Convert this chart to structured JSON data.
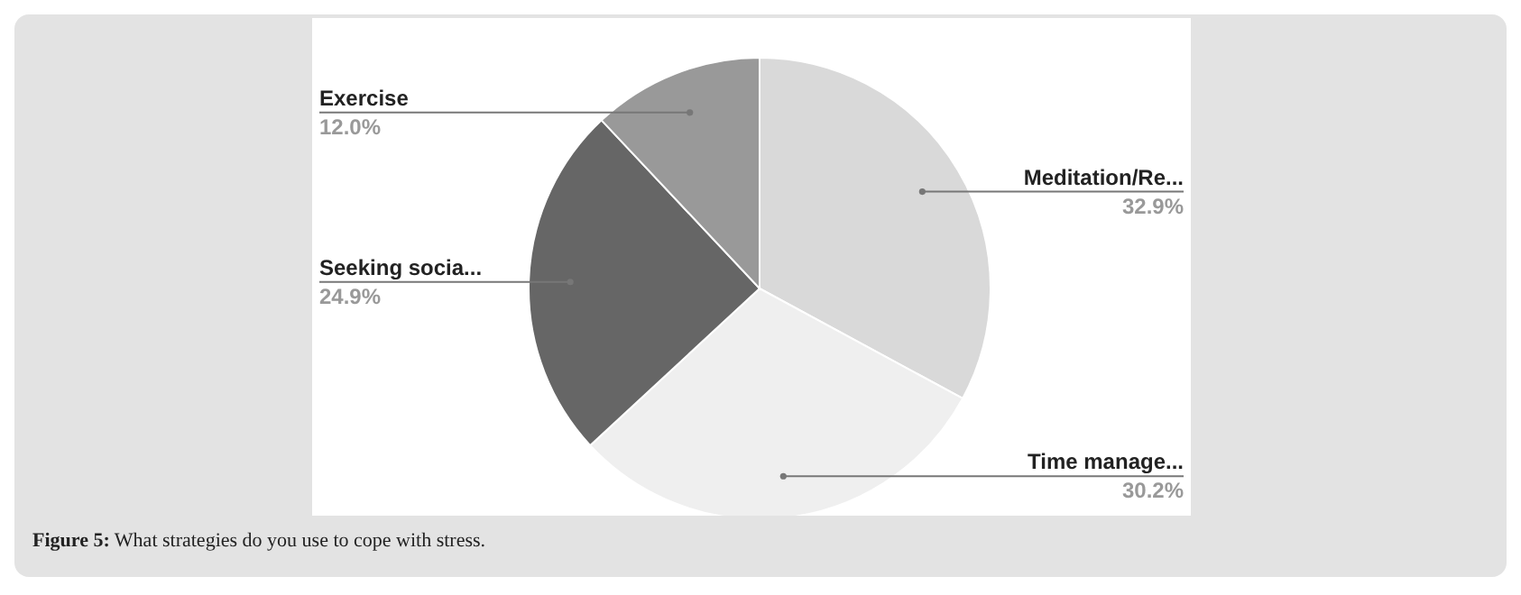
{
  "chart_data": {
    "type": "pie",
    "categories": [
      "Meditation/Re...",
      "Time manage...",
      "Seeking socia...",
      "Exercise"
    ],
    "values": [
      32.9,
      30.2,
      24.9,
      12.0
    ],
    "value_labels": [
      "32.9%",
      "30.2%",
      "24.9%",
      "12.0%"
    ],
    "colors": [
      "#d9d9d9",
      "#efefef",
      "#666666",
      "#999999"
    ],
    "annotations": [
      "Figure 5: What strategies do you use to cope with stress."
    ]
  }
}
